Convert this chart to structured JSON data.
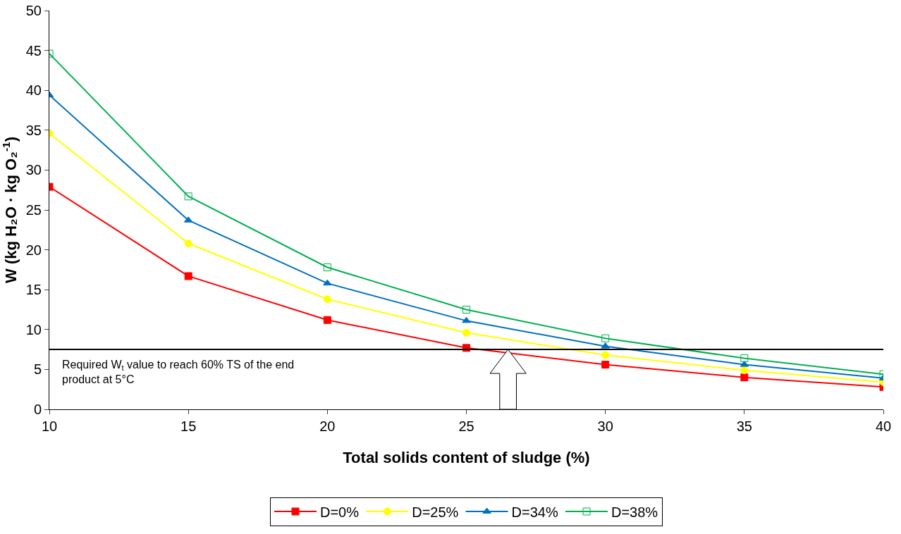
{
  "chart_data": {
    "type": "line",
    "xlabel": "Total solids content of sludge (%)",
    "ylabel": "W (kg H₂O · kg O₂$^{-1}$)",
    "x": [
      10,
      15,
      20,
      25,
      30,
      35,
      40
    ],
    "xlim": [
      10,
      40
    ],
    "xticks": [
      10,
      15,
      20,
      25,
      30,
      35,
      40
    ],
    "ylim": [
      0,
      50
    ],
    "yticks": [
      0,
      5,
      10,
      15,
      20,
      25,
      30,
      35,
      40,
      45,
      50
    ],
    "grid": false,
    "legend": "bottom",
    "series": [
      {
        "name": "D=0%",
        "color": "#ff0000",
        "marker": "square",
        "values": [
          27.9,
          16.7,
          11.2,
          7.7,
          5.6,
          4.0,
          2.8
        ]
      },
      {
        "name": "D=25%",
        "color": "#ffff00",
        "marker": "circle",
        "values": [
          34.6,
          20.8,
          13.8,
          9.6,
          6.8,
          4.9,
          3.4
        ]
      },
      {
        "name": "D=34%",
        "color": "#0070c0",
        "marker": "triangle",
        "values": [
          39.4,
          23.7,
          15.8,
          11.1,
          7.9,
          5.6,
          3.9
        ]
      },
      {
        "name": "D=38%",
        "color": "#00b050",
        "marker": "square-open",
        "values": [
          44.6,
          26.7,
          17.8,
          12.5,
          8.9,
          6.4,
          4.4
        ]
      }
    ],
    "ref_lines": [
      {
        "axis": "y",
        "value": 7.5,
        "color": "#000000",
        "label": "Required W$_{t}$ value to reach 60% TS of the end product at 5°C"
      }
    ]
  }
}
